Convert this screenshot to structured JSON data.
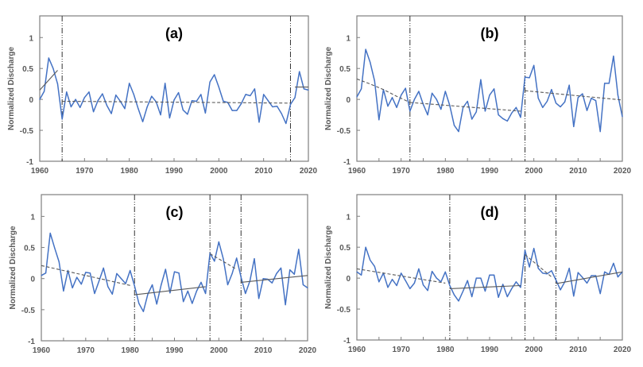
{
  "chart_data": [
    {
      "type": "line",
      "panel_label": "(a)",
      "ylabel": "Normalized Discharge",
      "xlim": [
        1960,
        2020
      ],
      "ylim": [
        -1,
        1.35
      ],
      "xticks": [
        1960,
        1970,
        1980,
        1990,
        2000,
        2010,
        2020
      ],
      "yticks": [
        -1,
        -0.5,
        0,
        0.5,
        1
      ],
      "ytick_labels": [
        "-1",
        "-0.5",
        "0",
        "0.5",
        "1"
      ],
      "series_color": "#4472c4",
      "values": [
        0.0,
        0.13,
        0.67,
        0.5,
        0.25,
        -0.32,
        0.12,
        -0.12,
        0.0,
        -0.13,
        0.03,
        0.12,
        -0.2,
        -0.02,
        0.09,
        -0.1,
        -0.23,
        0.07,
        -0.03,
        -0.15,
        0.26,
        0.08,
        -0.15,
        -0.36,
        -0.12,
        0.05,
        -0.04,
        -0.25,
        0.26,
        -0.3,
        -0.01,
        0.11,
        -0.17,
        -0.24,
        -0.02,
        -0.03,
        0.08,
        -0.22,
        0.28,
        0.4,
        0.2,
        -0.03,
        -0.05,
        -0.18,
        -0.18,
        -0.07,
        0.08,
        0.06,
        0.17,
        -0.37,
        0.08,
        -0.02,
        -0.12,
        -0.11,
        -0.23,
        -0.39,
        -0.08,
        0.03,
        0.45,
        0.17,
        0.15
      ],
      "breakpoints": [
        1965,
        2016
      ],
      "trends": [
        {
          "x": [
            1960,
            1964
          ],
          "y": [
            0.15,
            0.47
          ],
          "style": "solid"
        },
        {
          "x": [
            1965,
            2016
          ],
          "y": [
            -0.03,
            -0.06
          ],
          "style": "dashed"
        },
        {
          "x": [
            2017,
            2020
          ],
          "y": [
            0.2,
            0.2
          ],
          "style": "solid"
        }
      ]
    },
    {
      "type": "line",
      "panel_label": "(b)",
      "ylabel": "Normalized Discharge",
      "xlim": [
        1960,
        2020
      ],
      "ylim": [
        -1,
        1.35
      ],
      "xticks": [
        1960,
        1970,
        1980,
        1990,
        2000,
        2010,
        2020
      ],
      "yticks": [
        -1,
        -0.5,
        0,
        0.5,
        1
      ],
      "ytick_labels": [
        "-1",
        "-0.5",
        "0",
        "0.5",
        "1"
      ],
      "series_color": "#4472c4",
      "values": [
        0.04,
        0.17,
        0.81,
        0.6,
        0.3,
        -0.33,
        0.16,
        -0.11,
        0.03,
        -0.13,
        0.07,
        0.18,
        -0.19,
        0.0,
        0.13,
        -0.08,
        -0.25,
        0.1,
        0.0,
        -0.16,
        0.13,
        -0.1,
        -0.42,
        -0.52,
        -0.13,
        -0.03,
        -0.32,
        -0.2,
        0.32,
        -0.19,
        0.07,
        0.17,
        -0.25,
        -0.31,
        -0.35,
        -0.22,
        -0.13,
        -0.29,
        0.36,
        0.35,
        0.55,
        0.02,
        -0.13,
        -0.03,
        0.16,
        -0.06,
        -0.12,
        -0.04,
        0.23,
        -0.44,
        0.03,
        0.09,
        -0.18,
        0.02,
        -0.02,
        -0.52,
        0.26,
        0.26,
        0.7,
        0.07,
        -0.28
      ],
      "breakpoints": [
        1972,
        1998
      ],
      "trends": [
        {
          "x": [
            1960,
            1963,
            1966,
            1969,
            1972
          ],
          "y": [
            0.33,
            0.25,
            0.16,
            0.05,
            -0.05
          ],
          "style": "dashed"
        },
        {
          "x": [
            1972,
            1997
          ],
          "y": [
            -0.05,
            -0.19
          ],
          "style": "dashed"
        },
        {
          "x": [
            1998,
            2020
          ],
          "y": [
            0.14,
            -0.01
          ],
          "style": "dashed"
        }
      ]
    },
    {
      "type": "line",
      "panel_label": "(c)",
      "ylabel": "Normalized Discharge",
      "xlim": [
        1960,
        2020
      ],
      "ylim": [
        -1,
        1.35
      ],
      "xticks": [
        1960,
        1970,
        1980,
        1990,
        2000,
        2010,
        2020
      ],
      "yticks": [
        -1,
        -0.5,
        0,
        0.5,
        1
      ],
      "ytick_labels": [
        "-1",
        "-0.5",
        "0",
        "0.5",
        "1"
      ],
      "series_color": "#4472c4",
      "values": [
        0.05,
        0.09,
        0.73,
        0.49,
        0.27,
        -0.2,
        0.13,
        -0.15,
        0.02,
        -0.09,
        0.1,
        0.09,
        -0.24,
        -0.04,
        0.17,
        -0.13,
        -0.25,
        0.08,
        0.0,
        -0.08,
        0.13,
        -0.12,
        -0.4,
        -0.53,
        -0.25,
        -0.1,
        -0.41,
        -0.1,
        0.15,
        -0.23,
        0.11,
        0.09,
        -0.37,
        -0.2,
        -0.4,
        -0.2,
        -0.06,
        -0.24,
        0.41,
        0.28,
        0.59,
        0.32,
        -0.1,
        0.08,
        0.33,
        0.02,
        -0.24,
        -0.04,
        0.32,
        -0.32,
        0.0,
        -0.01,
        -0.07,
        0.08,
        0.17,
        -0.42,
        0.14,
        0.07,
        0.47,
        -0.1,
        -0.15
      ],
      "breakpoints": [
        1981,
        1998,
        2005
      ],
      "trends": [
        {
          "x": [
            1960,
            1980
          ],
          "y": [
            0.21,
            -0.11
          ],
          "style": "dashed"
        },
        {
          "x": [
            1981,
            1997
          ],
          "y": [
            -0.26,
            -0.13
          ],
          "style": "solid"
        },
        {
          "x": [
            1998,
            2004
          ],
          "y": [
            0.4,
            0.15
          ],
          "style": "dashed"
        },
        {
          "x": [
            2005,
            2020
          ],
          "y": [
            -0.06,
            0.05
          ],
          "style": "solid"
        }
      ]
    },
    {
      "type": "line",
      "panel_label": "(d)",
      "ylabel": "Normalized Discharge",
      "xlim": [
        1960,
        2020
      ],
      "ylim": [
        -1,
        1.35
      ],
      "xticks": [
        1960,
        1970,
        1980,
        1990,
        2000,
        2010,
        2020
      ],
      "yticks": [
        -1,
        -0.5,
        0,
        0.5,
        1
      ],
      "ytick_labels": [
        "-1",
        "-0.5",
        "0",
        "0.5",
        "1"
      ],
      "series_color": "#4472c4",
      "values": [
        0.1,
        0.05,
        0.5,
        0.29,
        0.19,
        -0.06,
        0.08,
        -0.15,
        -0.02,
        -0.12,
        0.08,
        -0.04,
        -0.17,
        -0.08,
        0.15,
        -0.11,
        -0.2,
        0.11,
        0.0,
        -0.06,
        0.1,
        -0.12,
        -0.27,
        -0.37,
        -0.21,
        -0.04,
        -0.3,
        0.0,
        0.0,
        -0.21,
        0.05,
        0.05,
        -0.31,
        -0.1,
        -0.3,
        -0.17,
        -0.06,
        -0.15,
        0.45,
        0.18,
        0.48,
        0.16,
        0.08,
        0.07,
        0.12,
        -0.03,
        -0.19,
        -0.06,
        0.16,
        -0.29,
        0.09,
        0.01,
        -0.08,
        0.04,
        0.04,
        -0.25,
        0.1,
        0.06,
        0.24,
        0.02,
        0.1
      ],
      "breakpoints": [
        1981,
        1998,
        2005
      ],
      "trends": [
        {
          "x": [
            1960,
            1980
          ],
          "y": [
            0.15,
            -0.08
          ],
          "style": "dashed"
        },
        {
          "x": [
            1981,
            1997
          ],
          "y": [
            -0.17,
            -0.12
          ],
          "style": "solid"
        },
        {
          "x": [
            1998,
            2004
          ],
          "y": [
            0.38,
            0.02
          ],
          "style": "dashed"
        },
        {
          "x": [
            2005,
            2020
          ],
          "y": [
            -0.09,
            0.1
          ],
          "style": "solid"
        }
      ]
    }
  ]
}
